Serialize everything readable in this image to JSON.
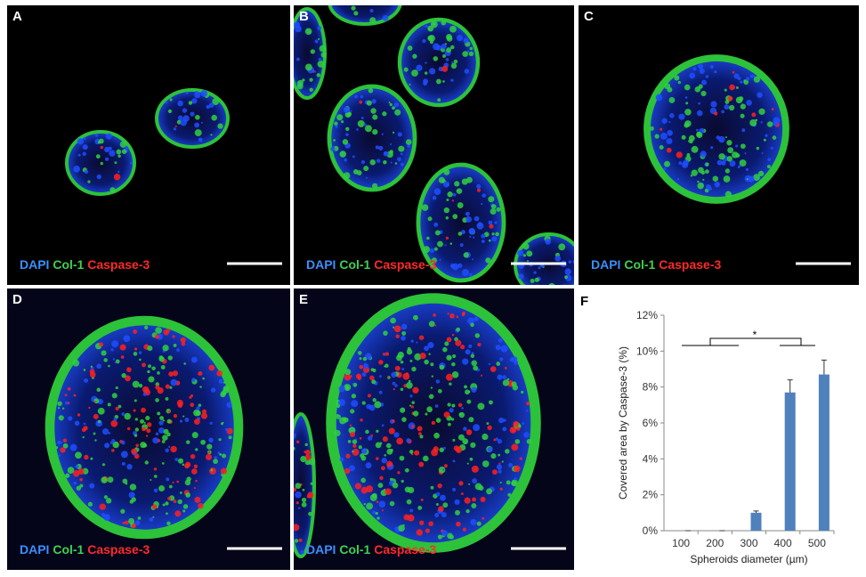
{
  "panels": [
    {
      "label": "A",
      "stains": [
        "DAPI",
        "Col-1",
        "Caspase-3"
      ]
    },
    {
      "label": "B",
      "stains": [
        "DAPI",
        "Col-1",
        "Caspase-3"
      ]
    },
    {
      "label": "C",
      "stains": [
        "DAPI",
        "Col-1",
        "Caspase-3"
      ]
    },
    {
      "label": "D",
      "stains": [
        "DAPI",
        "Col-1",
        "Caspase-3"
      ]
    },
    {
      "label": "E",
      "stains": [
        "DAPI",
        "Col-1",
        "Caspase-3"
      ]
    }
  ],
  "chart_label": "F",
  "chart_data": {
    "type": "bar",
    "y_label": "Covered area by Caspase-3 (%)",
    "x_label": "Spheroids diameter (µm)",
    "categories": [
      "100",
      "200",
      "300",
      "400",
      "500"
    ],
    "values": [
      0,
      0,
      1.0,
      7.7,
      8.7
    ],
    "errors": [
      0,
      0,
      0.1,
      0.7,
      0.8
    ],
    "color": "#4f81bd",
    "ylim": [
      0,
      12
    ],
    "yticks": [
      {
        "value": 0,
        "label": "0%"
      },
      {
        "value": 2,
        "label": "2%"
      },
      {
        "value": 4,
        "label": "4%"
      },
      {
        "value": 6,
        "label": "6%"
      },
      {
        "value": 8,
        "label": "8%"
      },
      {
        "value": 10,
        "label": "10%"
      },
      {
        "value": 12,
        "label": "12%"
      }
    ],
    "annotation": "*"
  }
}
